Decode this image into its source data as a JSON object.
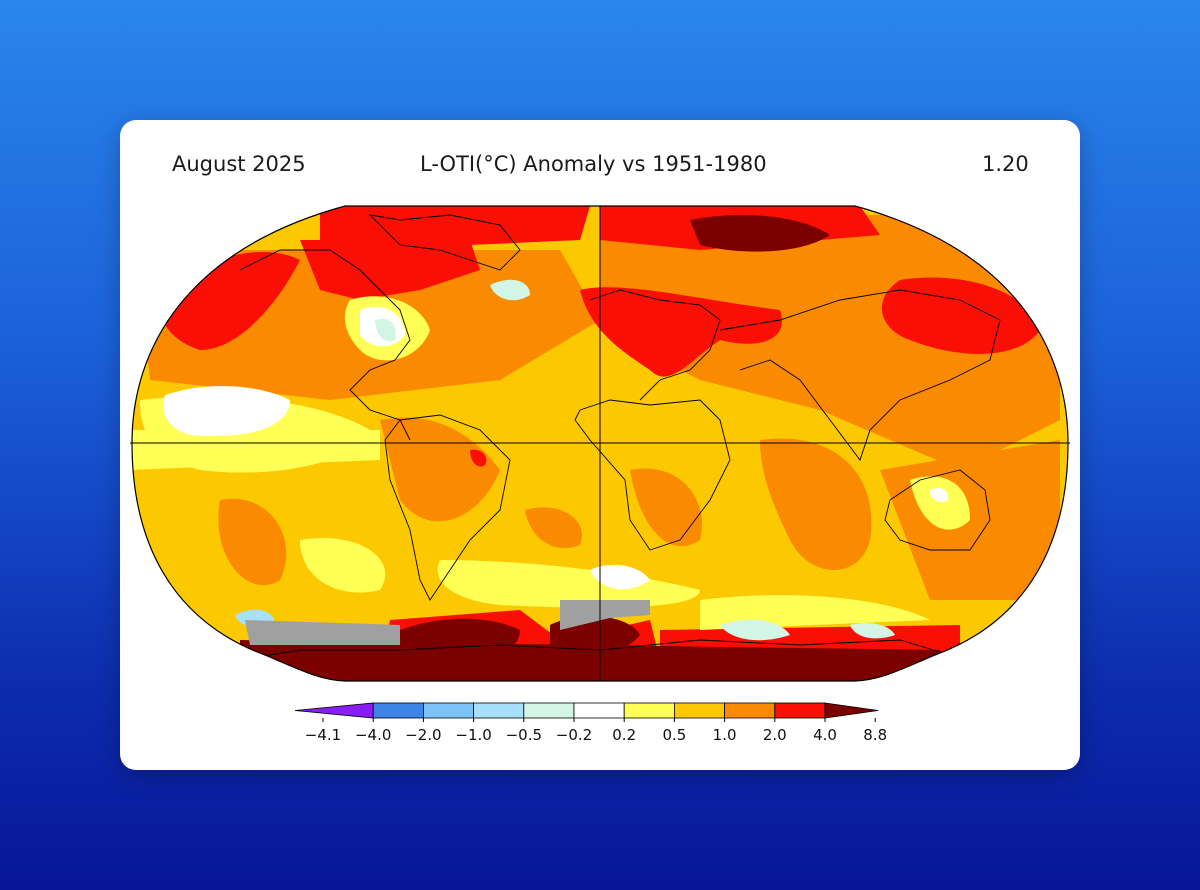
{
  "header": {
    "date": "August 2025",
    "title": "L-OTI(°C) Anomaly vs 1951-1980",
    "global_mean": "1.20"
  },
  "colorbar": {
    "ticks": [
      "−4.1",
      "−4.0",
      "−2.0",
      "−1.0",
      "−0.5",
      "−0.2",
      "0.2",
      "0.5",
      "1.0",
      "2.0",
      "4.0",
      "8.8"
    ],
    "colors": [
      "#8a1cf5",
      "#3e84e8",
      "#7cc4f7",
      "#a6e0fb",
      "#d3f5e6",
      "#ffffff",
      "#ffff55",
      "#fcc800",
      "#fa8a00",
      "#fa0f05",
      "#7d0000"
    ]
  },
  "map": {
    "missing_data_color": "#a0a0a0",
    "colors": {
      "dark_red": "#7d0000",
      "red": "#fa0f05",
      "orange": "#fa8a00",
      "gold": "#fcc800",
      "yellow": "#ffff55",
      "white": "#ffffff",
      "pale_cyan": "#d3f5e6",
      "light_blue": "#a6e0fb"
    }
  }
}
